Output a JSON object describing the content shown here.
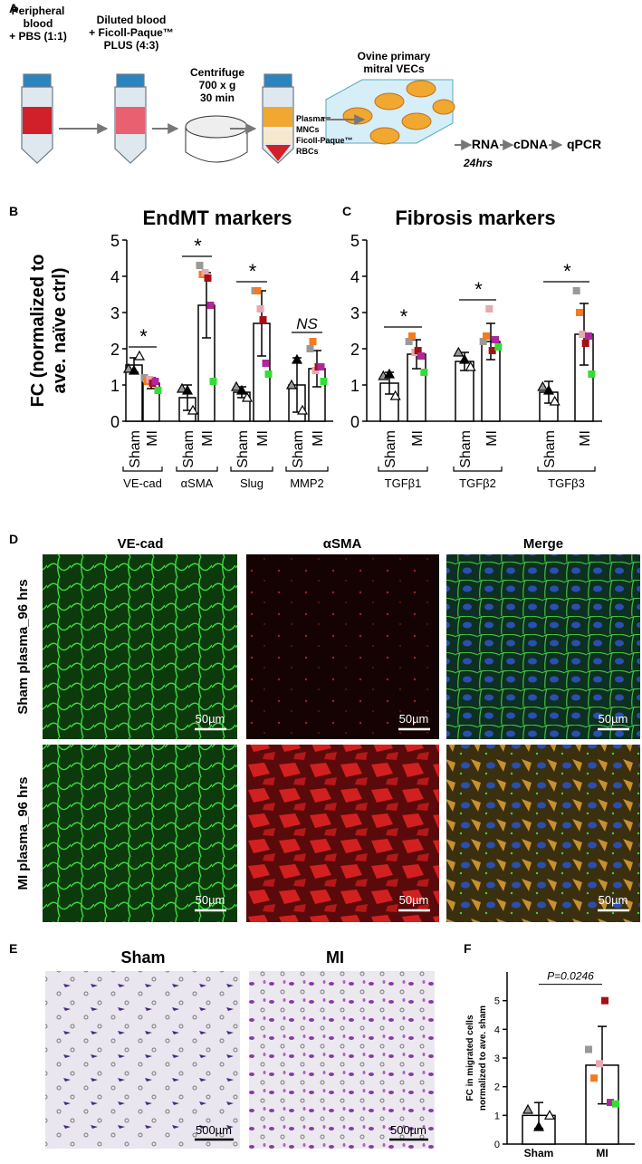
{
  "panels": [
    "A",
    "B",
    "C",
    "D",
    "E",
    "F"
  ],
  "diagram": {
    "step1": [
      "Peripheral",
      "blood",
      "+ PBS (1:1)"
    ],
    "step2": [
      "Diluted blood",
      "+ Ficoll-Paque™",
      "PLUS (4:3)"
    ],
    "step3": [
      "Centrifuge",
      "700 x g",
      "30 min"
    ],
    "layers": [
      "Plasma",
      "MNCs",
      "Ficoll-Paque™",
      "RBCs"
    ],
    "cells": [
      "Ovine primary",
      "mitral VECs"
    ],
    "time": "24hrs",
    "pipeline": [
      "RNA",
      "cDNA",
      "qPCR"
    ]
  },
  "chart_data": [
    {
      "type": "bar",
      "title": "EndMT markers",
      "ylabel": [
        "FC (normalized to",
        "ave. naïve ctrl)"
      ],
      "ylim": [
        0,
        5
      ],
      "yticks": [
        0,
        1,
        2,
        3,
        4,
        5
      ],
      "bar_color": "#ffffff",
      "categories": [
        "Sham",
        "MI",
        "Sham",
        "MI",
        "Sham",
        "MI",
        "Sham",
        "MI"
      ],
      "groups": [
        "VE-cad",
        "αSMA",
        "Slug",
        "MMP2"
      ],
      "values": [
        1.55,
        1.05,
        0.65,
        3.2,
        0.8,
        2.7,
        1.0,
        1.45
      ],
      "errors": [
        0.2,
        0.15,
        0.35,
        0.9,
        0.15,
        0.9,
        0.75,
        0.5
      ],
      "points": [
        [
          1.45,
          1.4,
          1.8
        ],
        [
          1.2,
          1.1,
          1.15,
          1.05,
          1.1,
          0.85
        ],
        [
          0.9,
          0.85,
          0.3
        ],
        [
          4.3,
          4.05,
          4.1,
          3.95,
          3.2,
          1.1
        ],
        [
          0.95,
          0.85,
          0.65
        ],
        [
          3.6,
          3.6,
          3.1,
          2.8,
          1.6,
          1.3
        ],
        [
          1.0,
          1.7,
          0.3
        ],
        [
          2.0,
          2.2,
          1.4,
          1.5,
          1.5,
          1.1
        ]
      ],
      "significance": [
        "*",
        "*",
        "*",
        "NS"
      ],
      "sham_marker_colors": [
        "#999999",
        "#000000",
        "#ffffff"
      ],
      "mi_marker_colors": [
        "#999999",
        "#f47b20",
        "#e7a9b0",
        "#a50f15",
        "#b0279a",
        "#33dd33"
      ]
    },
    {
      "type": "bar",
      "title": "Fibrosis markers",
      "ylim": [
        0,
        5
      ],
      "yticks": [
        0,
        1,
        2,
        3,
        4,
        5
      ],
      "bar_color": "#ffffff",
      "categories": [
        "Sham",
        "MI",
        "Sham",
        "MI",
        "Sham",
        "MI"
      ],
      "groups": [
        "TGFβ1",
        "TGFβ2",
        "TGFβ3"
      ],
      "values": [
        1.05,
        1.85,
        1.65,
        2.2,
        0.8,
        2.4
      ],
      "errors": [
        0.3,
        0.4,
        0.25,
        0.5,
        0.3,
        0.85
      ],
      "points": [
        [
          1.25,
          1.3,
          0.7
        ],
        [
          2.2,
          2.35,
          1.9,
          1.95,
          1.8,
          1.35
        ],
        [
          1.9,
          1.7,
          1.5
        ],
        [
          2.2,
          2.35,
          3.1,
          1.95,
          2.25,
          2.05
        ],
        [
          0.95,
          0.85,
          0.55
        ],
        [
          3.6,
          3.0,
          2.4,
          2.15,
          2.35,
          1.3
        ]
      ],
      "significance": [
        "*",
        "*",
        "*"
      ],
      "sham_marker_colors": [
        "#999999",
        "#000000",
        "#ffffff"
      ],
      "mi_marker_colors": [
        "#999999",
        "#f47b20",
        "#e7a9b0",
        "#a50f15",
        "#b0279a",
        "#33dd33"
      ]
    },
    {
      "type": "bar",
      "ylabel": [
        "FC in migrated cells",
        "normalized to ave. sham"
      ],
      "ylim": [
        0,
        6
      ],
      "yticks": [
        0,
        1,
        2,
        3,
        4,
        5
      ],
      "bar_color": "#ffffff",
      "categories": [
        "Sham",
        "MI"
      ],
      "values": [
        1.0,
        2.75
      ],
      "errors": [
        0.45,
        1.35
      ],
      "points": [
        [
          1.2,
          0.6,
          1.0
        ],
        [
          3.3,
          2.3,
          2.8,
          5.0,
          1.45,
          1.4
        ]
      ],
      "annotation": "P=0.0246",
      "sham_marker_colors": [
        "#999999",
        "#000000",
        "#ffffff"
      ],
      "mi_marker_colors": [
        "#999999",
        "#f47b20",
        "#e7a9b0",
        "#a50f15",
        "#b0279a",
        "#33dd33"
      ]
    }
  ],
  "micrographs": {
    "columns": [
      "VE-cad",
      "αSMA",
      "Merge"
    ],
    "rows": [
      "Sham plasma_96 hrs",
      "MI plasma_96 hrs"
    ],
    "scale_bar": "50µm"
  },
  "migration": {
    "columns": [
      "Sham",
      "MI"
    ],
    "scale_bar": "500µm"
  }
}
